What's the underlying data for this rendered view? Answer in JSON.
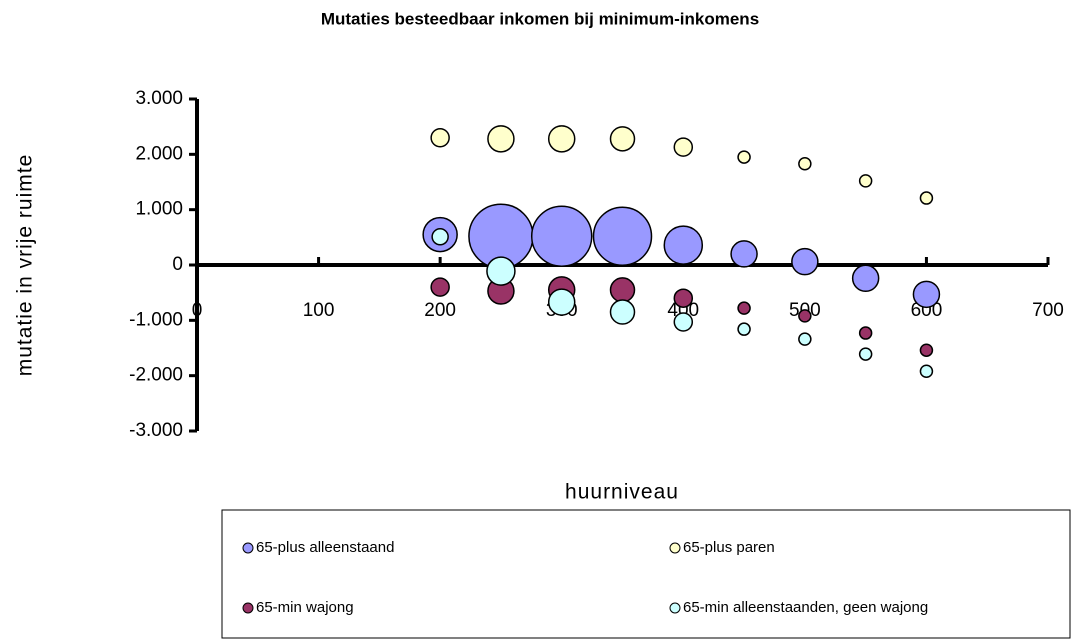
{
  "chart_data": {
    "type": "bubble",
    "title": "Mutaties besteedbaar inkomen bij minimum-inkomens",
    "x_label": "huurniveau",
    "y_label": "mutatie in vrije ruimte",
    "x": [
      200,
      250,
      300,
      350,
      400,
      450,
      500,
      550,
      600
    ],
    "xlim": [
      0,
      700
    ],
    "xticks": [
      0,
      100,
      200,
      300,
      400,
      500,
      600,
      700
    ],
    "ylim": [
      -3000,
      3000
    ],
    "yticks": [
      {
        "value": -3000,
        "label": "-3.000"
      },
      {
        "value": -2000,
        "label": "-2.000"
      },
      {
        "value": -1000,
        "label": "-1.000"
      },
      0,
      {
        "value": 1000,
        "label": "1.000"
      },
      {
        "value": 2000,
        "label": "2.000"
      },
      {
        "value": 3000,
        "label": "3.000"
      }
    ],
    "series": [
      {
        "name": "65-plus alleenstaand",
        "color": "#9999ff",
        "values": [
          550,
          520,
          520,
          520,
          360,
          200,
          60,
          -240,
          -530
        ],
        "sizes": [
          289,
          1024,
          900,
          841,
          361,
          169,
          169,
          169,
          169
        ]
      },
      {
        "name": "65-plus paren",
        "color": "#ffffcc",
        "values": [
          2300,
          2280,
          2280,
          2280,
          2130,
          1950,
          1830,
          1520,
          1210
        ],
        "sizes": [
          81,
          169,
          169,
          144,
          81,
          36,
          36,
          36,
          36
        ]
      },
      {
        "name": "65-min wajong",
        "color": "#993366",
        "values": [
          -400,
          -470,
          -450,
          -450,
          -600,
          -780,
          -920,
          -1230,
          -1540
        ],
        "sizes": [
          81,
          169,
          169,
          144,
          81,
          36,
          36,
          36,
          36
        ]
      },
      {
        "name": "65-min alleenstaanden, geen wajong",
        "color": "#ccffff",
        "values": [
          510,
          -110,
          -670,
          -850,
          -1030,
          -1160,
          -1340,
          -1610,
          -1920
        ],
        "sizes": [
          64,
          196,
          169,
          144,
          81,
          36,
          36,
          36,
          36
        ]
      }
    ]
  }
}
